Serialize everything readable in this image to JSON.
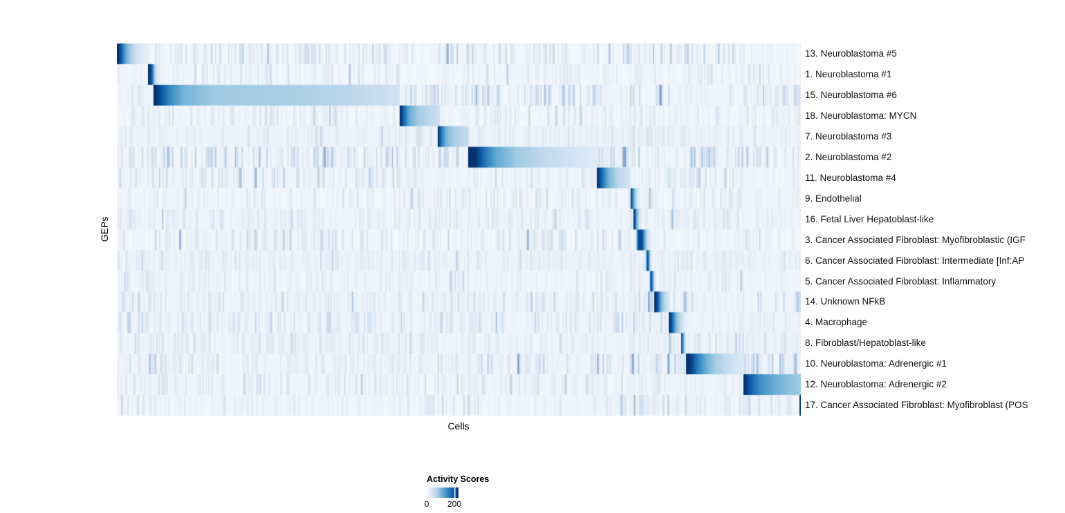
{
  "chart_data": {
    "type": "heatmap",
    "title": "",
    "xlabel": "Cells",
    "ylabel": "GEPs",
    "x_axis": {
      "label": "Cells",
      "tick_labels_shown": false
    },
    "y_axis": {
      "label": "GEPs",
      "tick_labels_shown": false
    },
    "colorbar": {
      "title": "Activity Scores",
      "min_label": "0",
      "tick_label": "200",
      "min": 0,
      "tick_value": 200,
      "scale_max": 230,
      "palette": "Blues",
      "color_stops": [
        "#f7fbff",
        "#deebf7",
        "#c6dbef",
        "#9ecae1",
        "#6baed6",
        "#4292c6",
        "#2171b5",
        "#08519c",
        "#08306b"
      ]
    },
    "cluster_boundaries": [
      0,
      0.047,
      0.0536,
      0.4126,
      0.4695,
      0.5137,
      0.7018,
      0.7503,
      0.7563,
      0.7635,
      0.7735,
      0.7866,
      0.8069,
      0.8292,
      0.8322,
      0.9161,
      1.0
    ],
    "rows": [
      {
        "label": "13. Neuroblastoma #5",
        "noise": 0.22,
        "block": {
          "start": 0.0,
          "end": 0.047,
          "stops": [
            [
              0,
              245
            ],
            [
              0.12,
              200
            ],
            [
              0.3,
              110
            ],
            [
              0.6,
              45
            ],
            [
              1,
              18
            ]
          ]
        }
      },
      {
        "label": "1. Neuroblastoma #1",
        "noise": 0.1,
        "block": {
          "start": 0.0465,
          "end": 0.0597,
          "stops": [
            [
              0,
              240
            ],
            [
              0.35,
              190
            ],
            [
              0.7,
              70
            ],
            [
              1,
              25
            ]
          ]
        }
      },
      {
        "label": "15. Neuroblastoma #6",
        "noise": 0.22,
        "block": {
          "start": 0.0536,
          "end": 0.4126,
          "stops": [
            [
              0,
              248
            ],
            [
              0.02,
              215
            ],
            [
              0.06,
              160
            ],
            [
              0.12,
              110
            ],
            [
              0.25,
              85
            ],
            [
              0.55,
              78
            ],
            [
              0.85,
              62
            ],
            [
              1,
              45
            ]
          ]
        }
      },
      {
        "label": "18. Neuroblastoma: MYCN",
        "noise": 0.15,
        "block": {
          "start": 0.4136,
          "end": 0.4712,
          "stops": [
            [
              0,
              242
            ],
            [
              0.1,
              185
            ],
            [
              0.25,
              115
            ],
            [
              0.5,
              80
            ],
            [
              0.8,
              62
            ],
            [
              1,
              52
            ]
          ]
        }
      },
      {
        "label": "7. Neuroblastoma #3",
        "noise": 0.1,
        "block": {
          "start": 0.4692,
          "end": 0.5127,
          "stops": [
            [
              0,
              238
            ],
            [
              0.12,
              170
            ],
            [
              0.3,
              105
            ],
            [
              0.6,
              75
            ],
            [
              1,
              58
            ]
          ]
        }
      },
      {
        "label": "2. Neuroblastoma #2",
        "noise": 0.28,
        "block": {
          "start": 0.5137,
          "end": 0.7018,
          "stops": [
            [
              0,
              248
            ],
            [
              0.06,
              225
            ],
            [
              0.13,
              170
            ],
            [
              0.22,
              120
            ],
            [
              0.38,
              85
            ],
            [
              0.6,
              60
            ],
            [
              0.85,
              40
            ],
            [
              1,
              28
            ]
          ]
        }
      },
      {
        "label": "11. Neuroblastoma #4",
        "noise": 0.16,
        "block": {
          "start": 0.7018,
          "end": 0.7503,
          "stops": [
            [
              0,
              240
            ],
            [
              0.15,
              180
            ],
            [
              0.35,
              110
            ],
            [
              0.65,
              65
            ],
            [
              1,
              40
            ]
          ]
        }
      },
      {
        "label": "9. Endothelial",
        "noise": 0.14,
        "block": {
          "start": 0.7513,
          "end": 0.7644,
          "stops": [
            [
              0,
              235
            ],
            [
              0.3,
              130
            ],
            [
              0.65,
              55
            ],
            [
              1,
              22
            ]
          ]
        }
      },
      {
        "label": "16. Fetal Liver Hepatoblast-like",
        "noise": 0.1,
        "block": {
          "start": 0.7563,
          "end": 0.7674,
          "stops": [
            [
              0,
              232
            ],
            [
              0.3,
              125
            ],
            [
              0.7,
              45
            ],
            [
              1,
              20
            ]
          ]
        }
      },
      {
        "label": "3. Cancer Associated Fibroblast: Myofibroblastic (IGF",
        "noise": 0.18,
        "block": {
          "start": 0.7594,
          "end": 0.7776,
          "stops": [
            [
              0,
              70
            ],
            [
              0.15,
              200
            ],
            [
              0.45,
              215
            ],
            [
              0.7,
              110
            ],
            [
              1,
              35
            ]
          ]
        }
      },
      {
        "label": "6. Cancer Associated Fibroblast: Intermediate [Inf:AP",
        "noise": 0.1,
        "block": {
          "start": 0.7735,
          "end": 0.7806,
          "stops": [
            [
              0,
              60
            ],
            [
              0.3,
              225
            ],
            [
              0.7,
              120
            ],
            [
              1,
              40
            ]
          ]
        }
      },
      {
        "label": "5. Cancer Associated Fibroblast: Inflammatory",
        "noise": 0.14,
        "block": {
          "start": 0.7786,
          "end": 0.7866,
          "stops": [
            [
              0,
              50
            ],
            [
              0.3,
              220
            ],
            [
              0.7,
              110
            ],
            [
              1,
              35
            ]
          ]
        }
      },
      {
        "label": "14. Unknown NFkB",
        "noise": 0.18,
        "block": {
          "start": 0.7866,
          "end": 0.8069,
          "stops": [
            [
              0,
              235
            ],
            [
              0.2,
              200
            ],
            [
              0.45,
              110
            ],
            [
              0.75,
              60
            ],
            [
              1,
              38
            ]
          ]
        }
      },
      {
        "label": "4. Macrophage",
        "noise": 0.18,
        "block": {
          "start": 0.8069,
          "end": 0.8292,
          "stops": [
            [
              0,
              238
            ],
            [
              0.2,
              195
            ],
            [
              0.5,
              100
            ],
            [
              0.8,
              55
            ],
            [
              1,
              35
            ]
          ]
        }
      },
      {
        "label": "8. Fibroblast/Hepatoblast-like",
        "noise": 0.14,
        "block": {
          "start": 0.8251,
          "end": 0.8312,
          "stops": [
            [
              0,
              225
            ],
            [
              0.4,
              150
            ],
            [
              1,
              40
            ]
          ]
        }
      },
      {
        "label": "10. Neuroblastoma: Adrenergic #1",
        "noise": 0.3,
        "block": {
          "start": 0.8322,
          "end": 0.9161,
          "stops": [
            [
              0,
              242
            ],
            [
              0.08,
              220
            ],
            [
              0.2,
              165
            ],
            [
              0.35,
              115
            ],
            [
              0.55,
              75
            ],
            [
              0.8,
              48
            ],
            [
              1,
              30
            ]
          ]
        }
      },
      {
        "label": "12. Neuroblastoma: Adrenergic #2",
        "noise": 0.12,
        "block": {
          "start": 0.9161,
          "end": 1.0,
          "stops": [
            [
              0,
              238
            ],
            [
              0.1,
              195
            ],
            [
              0.3,
              145
            ],
            [
              0.55,
              115
            ],
            [
              0.8,
              95
            ],
            [
              1,
              85
            ]
          ]
        }
      },
      {
        "label": "17. Cancer Associated Fibroblast: Myofibroblast (POS",
        "noise": 0.16,
        "block": {
          "start": 0.998,
          "end": 1.0,
          "stops": [
            [
              0,
              215
            ],
            [
              1,
              225
            ]
          ]
        }
      }
    ]
  }
}
